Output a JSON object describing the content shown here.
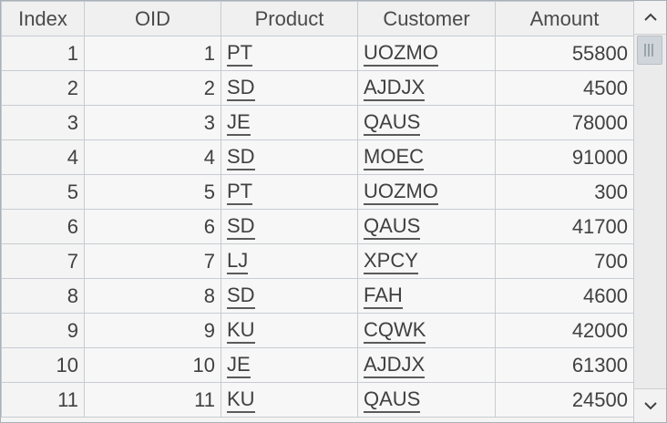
{
  "table": {
    "columns": [
      "Index",
      "OID",
      "Product",
      "Customer",
      "Amount"
    ],
    "rows": [
      {
        "index": "1",
        "oid": "1",
        "product": "PT",
        "customer": "UOZMO",
        "amount": "55800"
      },
      {
        "index": "2",
        "oid": "2",
        "product": "SD",
        "customer": "AJDJX",
        "amount": "4500"
      },
      {
        "index": "3",
        "oid": "3",
        "product": "JE",
        "customer": "QAUS",
        "amount": "78000"
      },
      {
        "index": "4",
        "oid": "4",
        "product": "SD",
        "customer": "MOEC",
        "amount": "91000"
      },
      {
        "index": "5",
        "oid": "5",
        "product": "PT",
        "customer": "UOZMO",
        "amount": "300"
      },
      {
        "index": "6",
        "oid": "6",
        "product": "SD",
        "customer": "QAUS",
        "amount": "41700"
      },
      {
        "index": "7",
        "oid": "7",
        "product": "LJ",
        "customer": "XPCY",
        "amount": "700"
      },
      {
        "index": "8",
        "oid": "8",
        "product": "SD",
        "customer": "FAH",
        "amount": "4600"
      },
      {
        "index": "9",
        "oid": "9",
        "product": "KU",
        "customer": "CQWK",
        "amount": "42000"
      },
      {
        "index": "10",
        "oid": "10",
        "product": "JE",
        "customer": "AJDJX",
        "amount": "61300"
      },
      {
        "index": "11",
        "oid": "11",
        "product": "KU",
        "customer": "QAUS",
        "amount": "24500"
      }
    ]
  },
  "scrollbar": {
    "up_icon": "chevron-up-icon",
    "down_icon": "chevron-down-icon"
  }
}
